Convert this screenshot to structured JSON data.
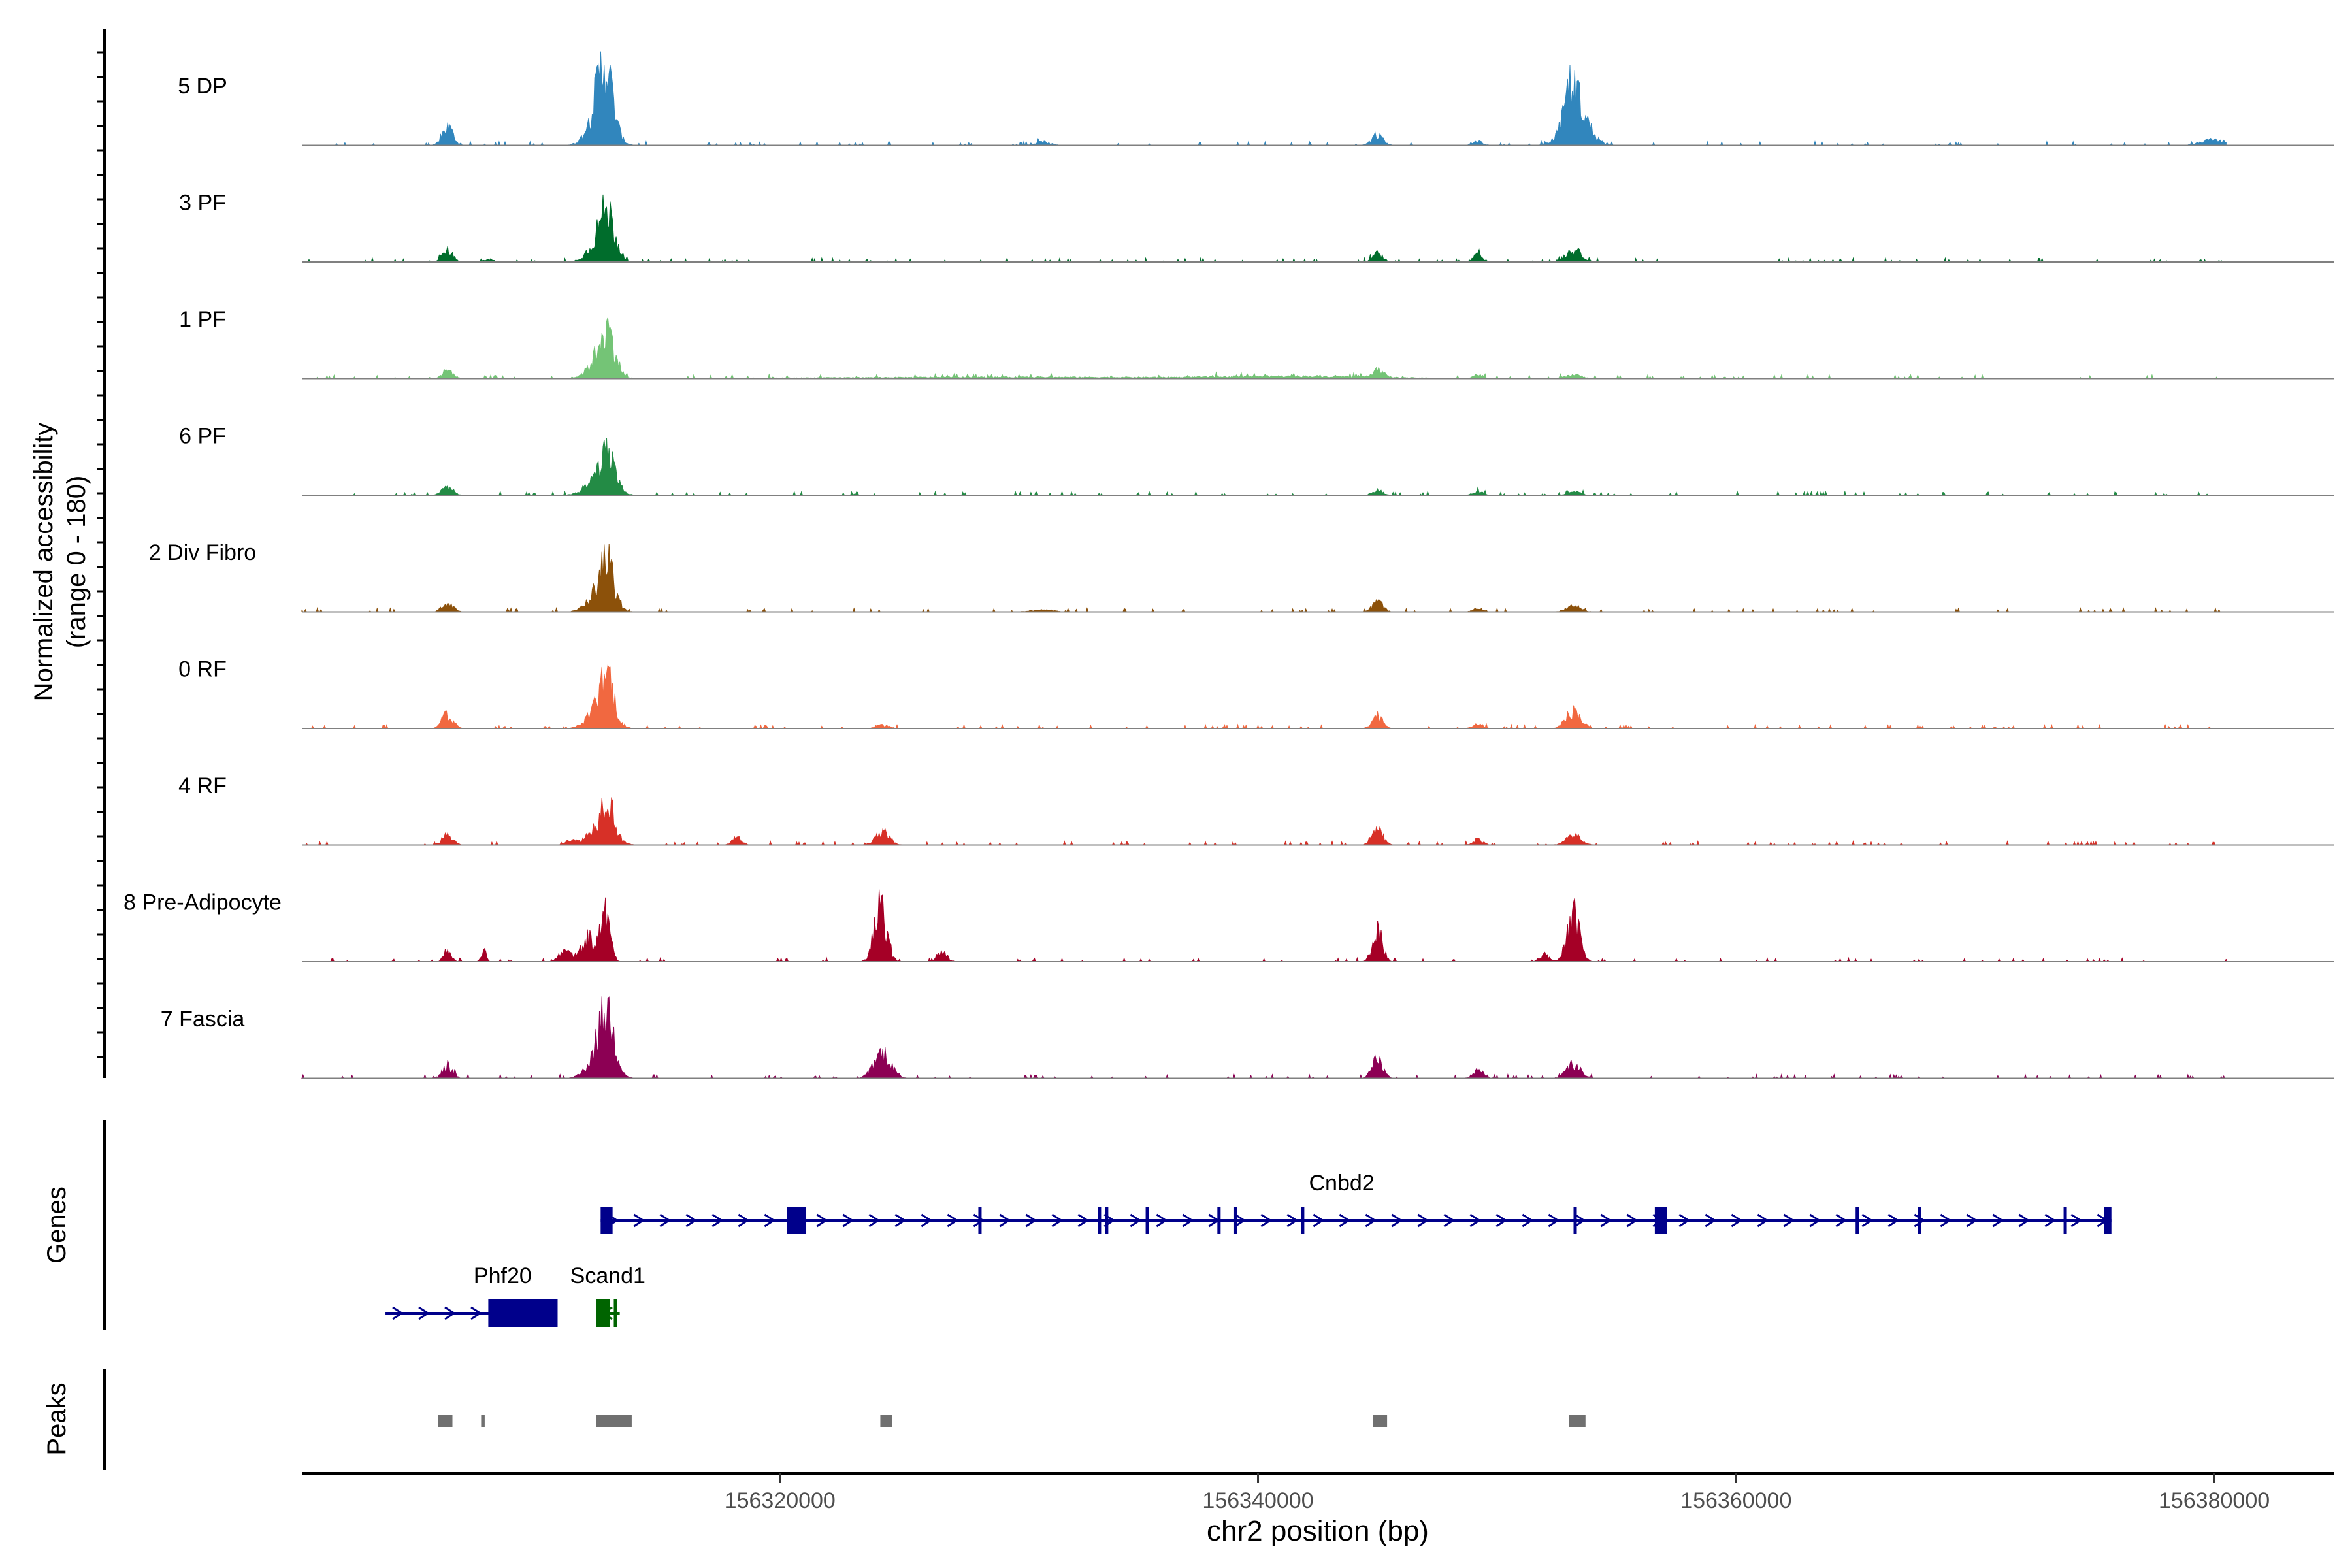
{
  "chart_data": {
    "type": "area",
    "ylabel_line1": "Normalized accessibility",
    "ylabel_line2": "(range 0 - 180)",
    "ylim": [
      0,
      180
    ],
    "xlabel": "chr2 position (bp)",
    "xlim": [
      156300000,
      156385000
    ],
    "xticks": [
      156320000,
      156340000,
      156360000,
      156380000
    ],
    "xtick_labels": [
      "156320000",
      "156340000",
      "156360000",
      "156380000"
    ],
    "series": [
      {
        "name": "5 DP",
        "color": "#3186bd",
        "peaks": [
          [
            156306100,
            40,
            220
          ],
          [
            156312500,
            85,
            450
          ],
          [
            156312700,
            100,
            300
          ],
          [
            156345000,
            20,
            250
          ],
          [
            156349200,
            8,
            200
          ],
          [
            156353300,
            85,
            500
          ],
          [
            156353100,
            60,
            220
          ],
          [
            156331000,
            7,
            300
          ],
          [
            156380000,
            12,
            500
          ]
        ]
      },
      {
        "name": "3 PF",
        "color": "#006d2c",
        "peaks": [
          [
            156306100,
            25,
            220
          ],
          [
            156312500,
            50,
            450
          ],
          [
            156312800,
            70,
            300
          ],
          [
            156345000,
            18,
            220
          ],
          [
            156349200,
            15,
            200
          ],
          [
            156353200,
            25,
            350
          ],
          [
            156307800,
            6,
            200
          ]
        ]
      },
      {
        "name": "1 PF",
        "color": "#74c476",
        "peaks": [
          [
            156306100,
            18,
            220
          ],
          [
            156312500,
            45,
            450
          ],
          [
            156312800,
            70,
            300
          ],
          [
            156345000,
            18,
            220
          ],
          [
            156349200,
            8,
            200
          ],
          [
            156353200,
            8,
            350
          ],
          [
            156330000,
            3,
            8000
          ],
          [
            156342000,
            4,
            3000
          ]
        ]
      },
      {
        "name": "6 PF",
        "color": "#238b45",
        "peaks": [
          [
            156306100,
            18,
            220
          ],
          [
            156312500,
            40,
            500
          ],
          [
            156312800,
            55,
            300
          ],
          [
            156345000,
            10,
            220
          ],
          [
            156349200,
            8,
            200
          ],
          [
            156353200,
            8,
            250
          ]
        ]
      },
      {
        "name": "2 Div Fibro",
        "color": "#8c510a",
        "peaks": [
          [
            156306100,
            20,
            220
          ],
          [
            156312500,
            50,
            450
          ],
          [
            156312800,
            75,
            250
          ],
          [
            156345000,
            22,
            220
          ],
          [
            156349200,
            8,
            200
          ],
          [
            156353200,
            12,
            300
          ],
          [
            156331000,
            4,
            500
          ]
        ]
      },
      {
        "name": "0 RF",
        "color": "#f16840",
        "peaks": [
          [
            156306100,
            30,
            220
          ],
          [
            156312500,
            50,
            450
          ],
          [
            156312800,
            80,
            250
          ],
          [
            156324300,
            8,
            250
          ],
          [
            156345000,
            28,
            220
          ],
          [
            156349200,
            8,
            200
          ],
          [
            156353200,
            38,
            300
          ]
        ]
      },
      {
        "name": "4 RF",
        "color": "#d73027",
        "peaks": [
          [
            156306100,
            22,
            220
          ],
          [
            156312500,
            40,
            500
          ],
          [
            156312800,
            70,
            250
          ],
          [
            156318200,
            15,
            200
          ],
          [
            156324300,
            25,
            300
          ],
          [
            156345000,
            35,
            220
          ],
          [
            156349200,
            12,
            200
          ],
          [
            156353200,
            22,
            300
          ],
          [
            156311200,
            10,
            200
          ]
        ]
      },
      {
        "name": "8 Pre-Adipocyte",
        "color": "#a50026",
        "peaks": [
          [
            156306100,
            25,
            150
          ],
          [
            156307600,
            28,
            100
          ],
          [
            156312000,
            50,
            300
          ],
          [
            156312700,
            100,
            200
          ],
          [
            156324200,
            120,
            250
          ],
          [
            156345000,
            75,
            200
          ],
          [
            156353200,
            100,
            250
          ],
          [
            156311000,
            22,
            250
          ],
          [
            156326800,
            20,
            200
          ],
          [
            156352000,
            15,
            200
          ]
        ]
      },
      {
        "name": "7 Fascia",
        "color": "#8c0054",
        "peaks": [
          [
            156306100,
            25,
            220
          ],
          [
            156312500,
            60,
            450
          ],
          [
            156312800,
            95,
            300
          ],
          [
            156324300,
            55,
            350
          ],
          [
            156345000,
            40,
            220
          ],
          [
            156349200,
            18,
            200
          ],
          [
            156353200,
            28,
            300
          ]
        ]
      }
    ],
    "genes_track_label": "Genes",
    "genes": [
      {
        "name": "Cnbd2",
        "start": 156312500,
        "end": 156375700,
        "strand": "+",
        "row": 0,
        "color": "#00008b",
        "exons": [
          [
            156312500,
            156313000
          ],
          [
            156320300,
            156321100
          ],
          [
            156328300,
            156328400
          ],
          [
            156333300,
            156333350
          ],
          [
            156333600,
            156333700
          ],
          [
            156335300,
            156335400
          ],
          [
            156338300,
            156338400
          ],
          [
            156339000,
            156339100
          ],
          [
            156341800,
            156341900
          ],
          [
            156353200,
            156353300
          ],
          [
            156356600,
            156357100
          ],
          [
            156365000,
            156365100
          ],
          [
            156367600,
            156367700
          ],
          [
            156373700,
            156373800
          ],
          [
            156375400,
            156375700
          ]
        ]
      },
      {
        "name": "Phf20",
        "start": 156303500,
        "end": 156310700,
        "strand": "+",
        "row": 1,
        "color": "#00008b",
        "exons": [
          [
            156307800,
            156310700
          ]
        ]
      },
      {
        "name": "Scand1",
        "start": 156312300,
        "end": 156313300,
        "strand": "-",
        "row": 1,
        "color": "#006400",
        "exons": [
          [
            156312300,
            156312900
          ],
          [
            156313050,
            156313150
          ]
        ]
      }
    ],
    "peaks_track_label": "Peaks",
    "peak_regions": [
      [
        156305700,
        156306300
      ],
      [
        156307500,
        156307650
      ],
      [
        156312300,
        156313800
      ],
      [
        156324200,
        156324700
      ],
      [
        156344800,
        156345400
      ],
      [
        156353000,
        156353700
      ]
    ]
  }
}
